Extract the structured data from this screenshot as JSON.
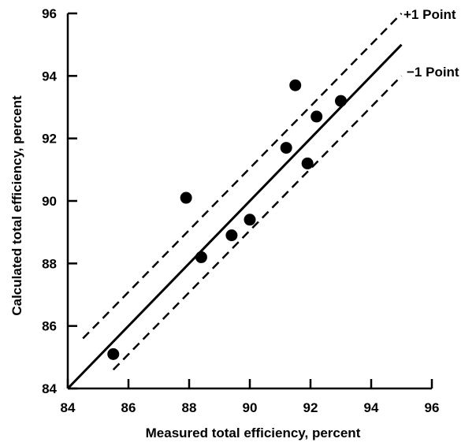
{
  "chart_data": {
    "type": "scatter",
    "title": "",
    "xlabel": "Measured total efficiency, percent",
    "ylabel": "Calculated total efficiency, percent",
    "xlim": [
      84,
      96
    ],
    "ylim": [
      84,
      96
    ],
    "xticks": [
      84,
      86,
      88,
      90,
      92,
      94,
      96
    ],
    "yticks": [
      84,
      86,
      88,
      90,
      92,
      94,
      96
    ],
    "x_tick_labels": [
      "84",
      "86",
      "88",
      "90",
      "92",
      "94",
      "96"
    ],
    "y_tick_labels": [
      "84",
      "86",
      "88",
      "90",
      "92",
      "94",
      "96"
    ],
    "grid": false,
    "points": [
      {
        "x": 85.5,
        "y": 85.1
      },
      {
        "x": 87.9,
        "y": 90.1
      },
      {
        "x": 88.4,
        "y": 88.2
      },
      {
        "x": 89.4,
        "y": 88.9
      },
      {
        "x": 90.0,
        "y": 89.4
      },
      {
        "x": 91.2,
        "y": 91.7
      },
      {
        "x": 91.5,
        "y": 93.7
      },
      {
        "x": 91.9,
        "y": 91.2
      },
      {
        "x": 92.2,
        "y": 92.7
      },
      {
        "x": 93.0,
        "y": 93.2
      }
    ],
    "reference_lines": [
      {
        "label": "",
        "style": "solid",
        "x": [
          84,
          95.0
        ],
        "y": [
          84,
          95.0
        ]
      },
      {
        "label": "+1 Point",
        "style": "dashed",
        "x": [
          84.5,
          95.0
        ],
        "y": [
          85.6,
          96.0
        ]
      },
      {
        "label": "−1 Point",
        "style": "dashed",
        "x": [
          85.5,
          95.0
        ],
        "y": [
          84.6,
          94.0
        ]
      }
    ]
  }
}
